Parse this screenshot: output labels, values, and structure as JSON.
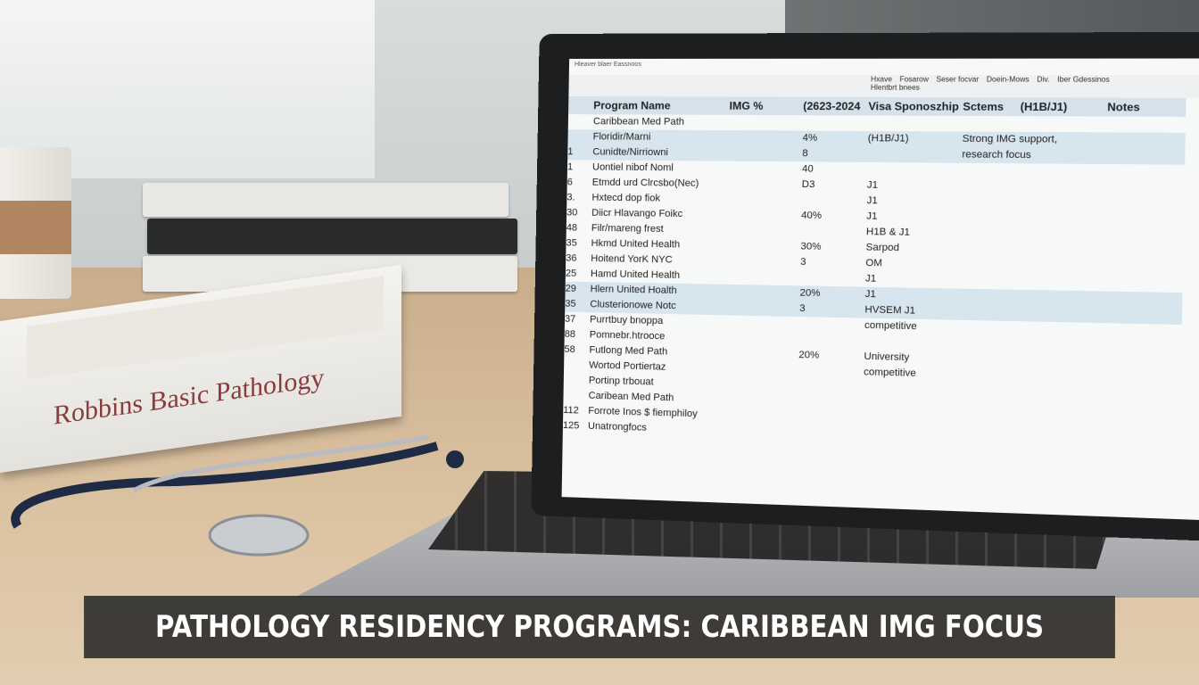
{
  "caption": "PATHOLOGY RESIDENCY PROGRAMS: CARIBBEAN IMG FOCUS",
  "book": {
    "title": "Robbins Basic Pathology"
  },
  "spreadsheet": {
    "menu": "Hleaver blaer Eassnoos",
    "toolbar": [
      "Hxave",
      "Fosarow",
      "Seser focvar",
      "Doein-Mows",
      "Div.",
      "Iber Gdessinos"
    ],
    "subtoolbar": "Hlentbrt bnees",
    "headers": [
      "Program Name",
      "IMG %",
      "(2623-2024",
      "Visa Sponoszhip",
      "Sctems",
      "(H1B/J1)",
      "Notes"
    ],
    "rows": [
      {
        "name": "Caribbean Med Path"
      },
      {
        "name": "Floridir/Marni",
        "img": "4%",
        "visa": "(H1B/J1)",
        "notes": "Strong IMG support,"
      },
      {
        "num": "1",
        "name": "Cunidte/Nirriowni",
        "img": "8",
        "notes": "research focus"
      },
      {
        "num": "1",
        "name": "Uontiel nibof Noml",
        "img": "40"
      },
      {
        "num": "6",
        "name": "Etmdd urd Clrcsbo(Nec)",
        "img": "D3",
        "visa": "J1"
      },
      {
        "num": "3.",
        "name": "Hxtecd dop fiok",
        "visa": "J1"
      },
      {
        "num": "30",
        "name": "Diicr Hlavango Foikc",
        "img": "40%",
        "visa": "J1"
      },
      {
        "num": "48",
        "name": "Filr/mareng frest",
        "visa": "H1B & J1"
      },
      {
        "num": "35",
        "name": "Hkmd United Health",
        "img": "30%",
        "visa": "Sarpod"
      },
      {
        "num": "36",
        "name": "Hoitend YorK NYC",
        "img": "3",
        "visa": "OM"
      },
      {
        "num": "25",
        "name": "Hamd United Health",
        "visa": "J1"
      },
      {
        "num": "29",
        "name": "Hlern United Hoalth",
        "img": "20%",
        "visa": "J1"
      },
      {
        "num": "35",
        "name": "Clusterionowe Notc",
        "img": "3",
        "visa": "HVSEM J1"
      },
      {
        "num": "37",
        "name": "Purrtbuy bnoppa",
        "visa": "competitive"
      },
      {
        "num": "88",
        "name": "Pomnebr.htrooce"
      },
      {
        "num": "58",
        "name": "Futlong Med Path",
        "img": "20%",
        "visa": "University"
      },
      {
        "name": "Wortod Portiertaz",
        "visa": "competitive"
      },
      {
        "name": "Portinp trbouat"
      },
      {
        "name": "Caribean Med Path"
      },
      {
        "num": "112",
        "name": "Forrote Inos $ fiemphiloy"
      },
      {
        "num": "125",
        "name": "Unatrongfocs"
      }
    ]
  }
}
